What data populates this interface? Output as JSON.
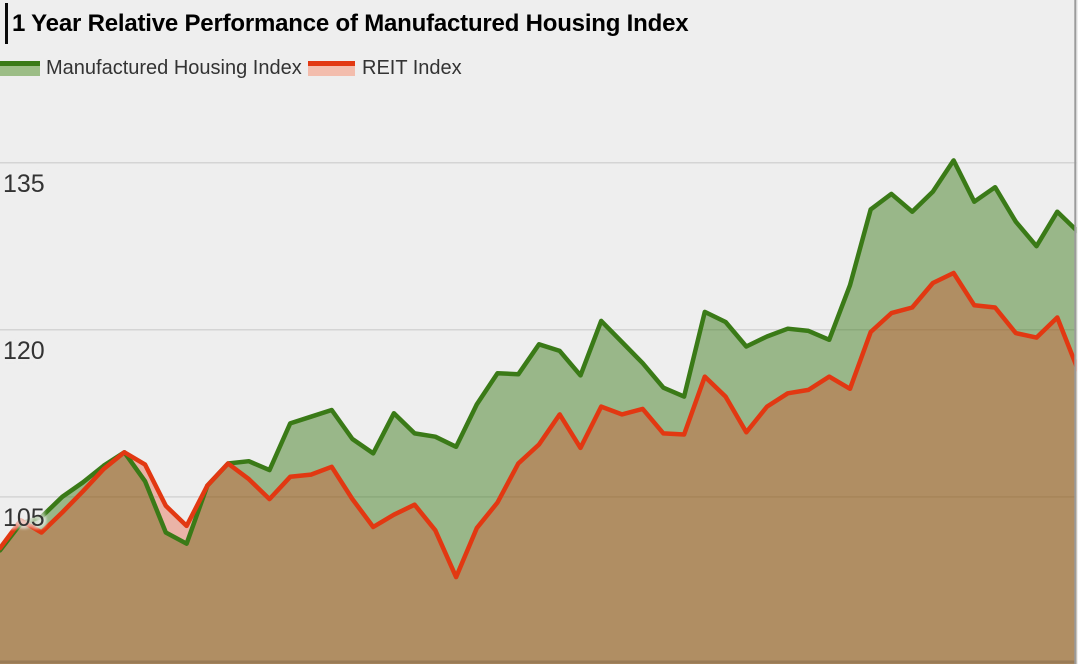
{
  "title": "1 Year Relative Performance of Manufactured Housing Index",
  "legend": [
    {
      "label": "Manufactured Housing Index",
      "line_color": "#3a7a17",
      "fill_color": "#9cbd86"
    },
    {
      "label": "REIT Index",
      "line_color": "#e23812",
      "fill_color": "#f3bdad"
    }
  ],
  "colors": {
    "background": "#eeeeee",
    "grid_line": "#d4d4d4",
    "right_border": "#9b9b9b",
    "title_text": "#000000",
    "axis_text": "#333333",
    "overlap_fill_appearance": "#a98f5e"
  },
  "chart_data": {
    "type": "area",
    "title": "1 Year Relative Performance of Manufactured Housing Index",
    "xlabel": "",
    "ylabel": "",
    "x_axis_labels": [],
    "yticks": [
      135,
      120,
      105
    ],
    "ylim": [
      90,
      149.6
    ],
    "grid": "horizontal",
    "grid_color": "#d4d4d4",
    "legend_position": "top-left",
    "baseline_value": 100,
    "points_per_series": 53,
    "series": [
      {
        "name": "Manufactured Housing Index",
        "color": "#3a7a17",
        "fill": "rgba(58,122,23,0.47)",
        "values": [
          100.2,
          102.6,
          103.2,
          105.0,
          106.3,
          107.8,
          109.0,
          106.4,
          101.8,
          100.8,
          106.0,
          108.0,
          108.2,
          107.4,
          111.6,
          112.2,
          112.8,
          110.2,
          108.9,
          112.5,
          110.7,
          110.4,
          109.5,
          113.3,
          116.1,
          116.0,
          118.7,
          118.1,
          115.9,
          120.8,
          118.9,
          117.0,
          114.8,
          114.0,
          121.6,
          120.7,
          118.5,
          119.4,
          120.1,
          119.9,
          119.1,
          124.0,
          130.8,
          132.2,
          130.6,
          132.4,
          135.2,
          131.5,
          132.8,
          129.7,
          127.5,
          130.6,
          128.8
        ]
      },
      {
        "name": "REIT Index",
        "color": "#e23812",
        "fill": "rgba(226,56,18,0.32)",
        "values": [
          100.4,
          102.9,
          101.8,
          103.6,
          105.5,
          107.5,
          109.0,
          107.9,
          104.2,
          102.4,
          106.0,
          108.0,
          106.6,
          104.8,
          106.8,
          107.0,
          107.7,
          104.8,
          102.3,
          103.4,
          104.3,
          102.0,
          97.8,
          102.2,
          104.5,
          108.0,
          109.7,
          112.4,
          109.4,
          113.1,
          112.4,
          112.9,
          110.7,
          110.6,
          115.8,
          114.0,
          110.8,
          113.1,
          114.3,
          114.6,
          115.8,
          114.7,
          119.8,
          121.5,
          122.0,
          124.2,
          125.1,
          122.2,
          122.0,
          119.7,
          119.3,
          121.1,
          116.4
        ]
      }
    ]
  }
}
